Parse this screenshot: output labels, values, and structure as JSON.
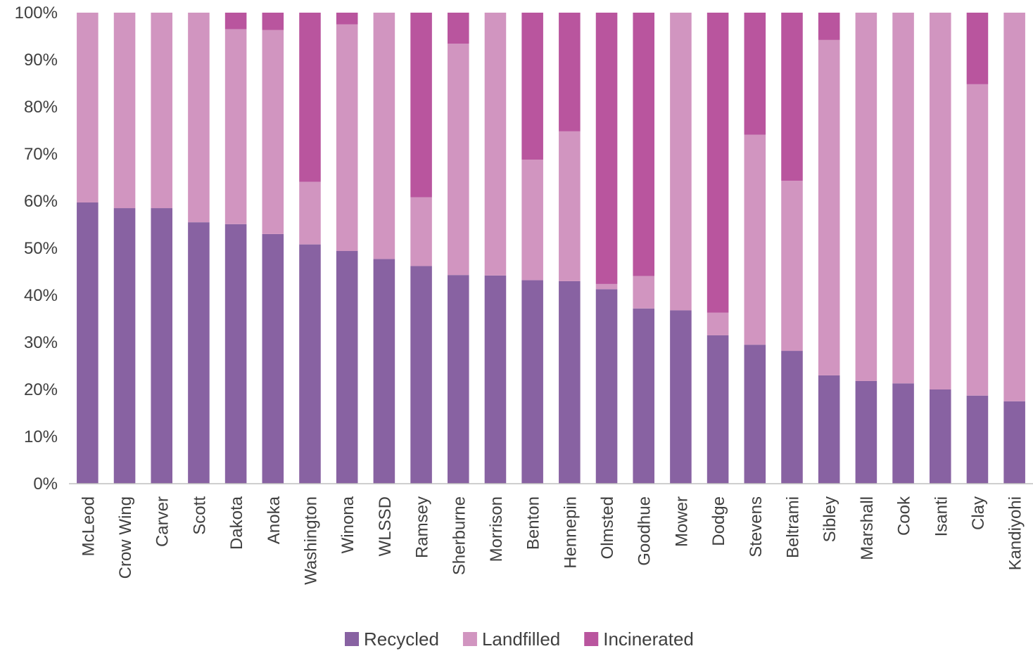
{
  "chart_data": {
    "type": "bar",
    "stacked": true,
    "normalized": true,
    "categories": [
      "McLeod",
      "Crow Wing",
      "Carver",
      "Scott",
      "Dakota",
      "Anoka",
      "Washington",
      "Winona",
      "WLSSD",
      "Ramsey",
      "Sherburne",
      "Morrison",
      "Benton",
      "Hennepin",
      "Olmsted",
      "Goodhue",
      "Mower",
      "Dodge",
      "Stevens",
      "Beltrami",
      "Sibley",
      "Marshall",
      "Cook",
      "Isanti",
      "Clay",
      "Kandiyohi"
    ],
    "series": [
      {
        "name": "Recycled",
        "color": "#8862a2",
        "values": [
          59.7,
          58.5,
          58.5,
          55.5,
          55.1,
          53.0,
          50.8,
          49.4,
          47.7,
          46.2,
          44.3,
          44.2,
          43.2,
          43.0,
          41.3,
          37.2,
          36.8,
          31.5,
          29.5,
          28.2,
          23.0,
          21.8,
          21.3,
          20.0,
          18.7,
          17.5
        ]
      },
      {
        "name": "Landfilled",
        "color": "#d195c0",
        "values": [
          40.3,
          41.5,
          41.5,
          44.5,
          41.4,
          43.3,
          13.3,
          48.1,
          52.3,
          14.6,
          49.1,
          55.8,
          25.6,
          31.8,
          1.1,
          6.9,
          63.2,
          4.8,
          44.6,
          36.1,
          71.2,
          78.2,
          78.7,
          80.0,
          66.1,
          82.5
        ]
      },
      {
        "name": "Incinerated",
        "color": "#b9559e",
        "values": [
          0,
          0,
          0,
          0,
          3.5,
          3.7,
          35.9,
          2.5,
          0,
          39.2,
          6.6,
          0,
          31.2,
          25.2,
          57.6,
          55.9,
          0,
          63.7,
          25.9,
          35.7,
          5.8,
          0,
          0,
          0,
          15.2,
          0
        ]
      }
    ],
    "y_ticks": [
      "0%",
      "10%",
      "20%",
      "30%",
      "40%",
      "50%",
      "60%",
      "70%",
      "80%",
      "90%",
      "100%"
    ],
    "ylim": [
      0,
      100
    ],
    "grid": false,
    "legend_position": "bottom"
  }
}
